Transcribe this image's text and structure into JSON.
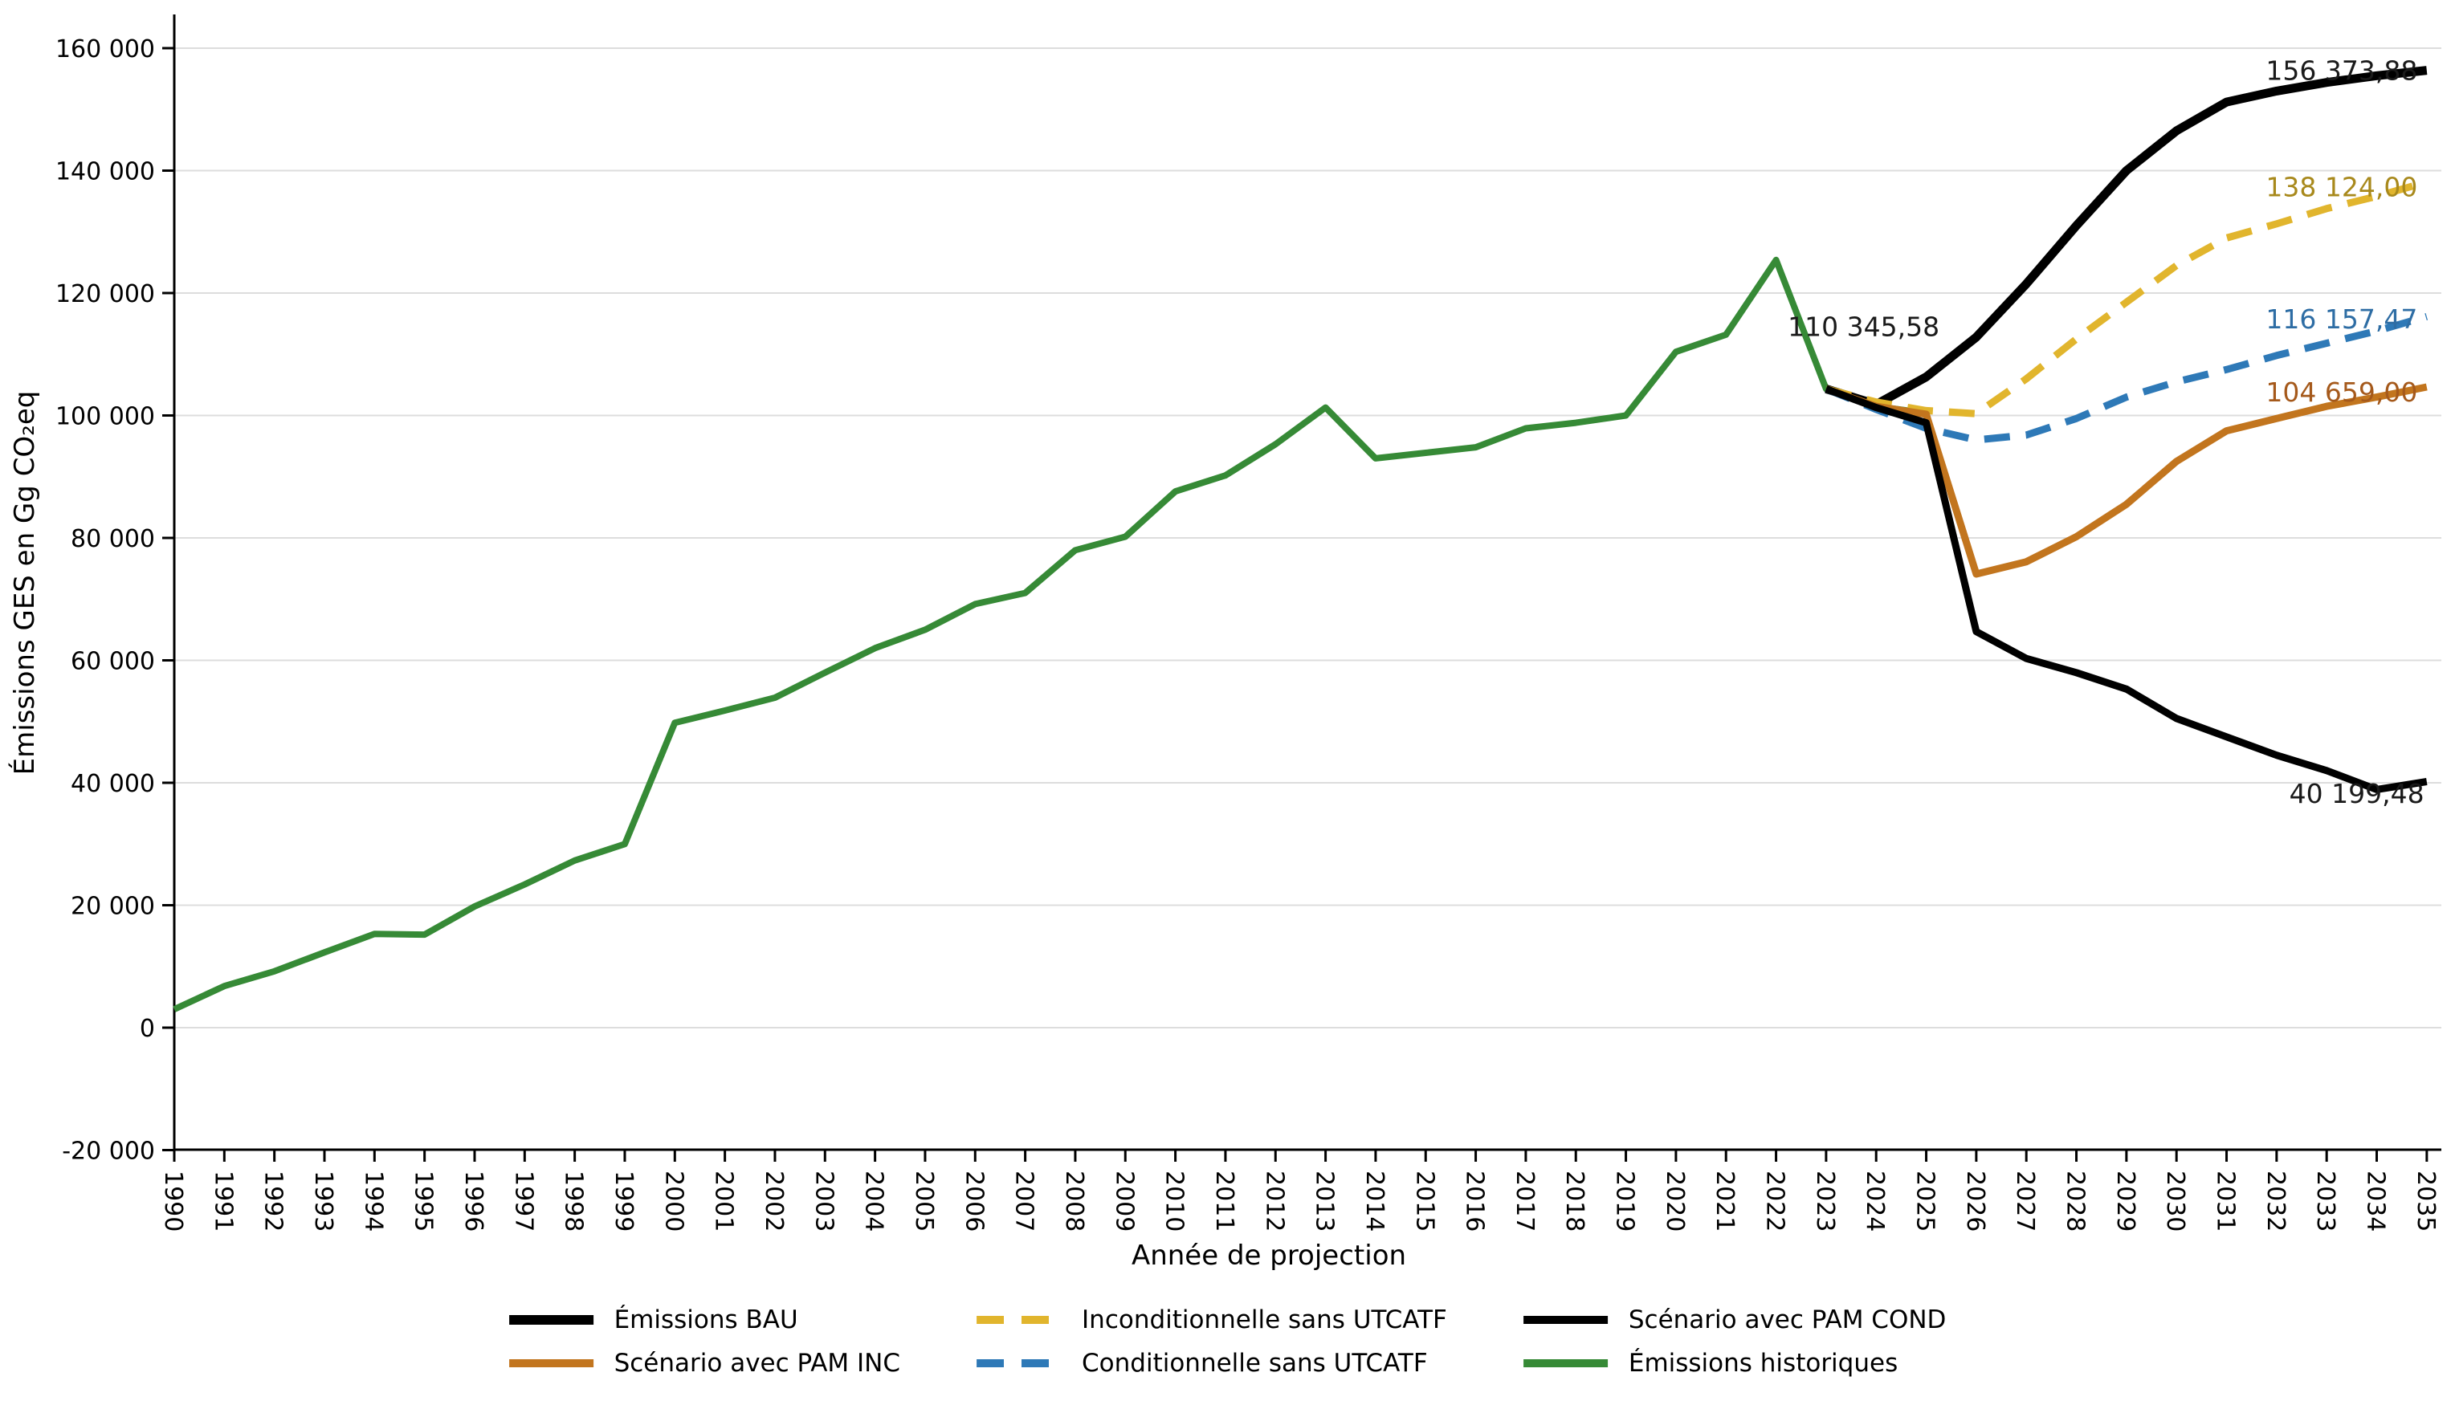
{
  "chart_data": {
    "type": "line",
    "title": "",
    "xlabel": "Année de projection",
    "ylabel": "Émissions GES en Gg CO₂eq",
    "x_range": [
      1990,
      2035
    ],
    "ylim": [
      -20000,
      160000
    ],
    "y_tick_step": 20000,
    "grid": "horizontal-only",
    "legend_position": "bottom-center",
    "series": [
      {
        "id": "historical",
        "name": "Émissions historiques",
        "color": "#368A36",
        "style": "solid",
        "x_start": 1990,
        "values": [
          3000,
          6800,
          9200,
          12300,
          15300,
          15200,
          19800,
          23400,
          27300,
          30000,
          49800,
          51800,
          53900,
          58000,
          62000,
          65000,
          69200,
          71000,
          78000,
          80200,
          87600,
          90200,
          95300,
          101300,
          93000,
          93900,
          94800,
          97900,
          98800,
          100000,
          110400,
          113200,
          125400,
          104346,
          101500,
          100400
        ]
      },
      {
        "id": "bau",
        "name": "Émissions BAU",
        "color": "#000000",
        "style": "solid",
        "x_start": 2023,
        "values": [
          104346,
          101800,
          106300,
          112800,
          121500,
          131000,
          140000,
          146500,
          151200,
          153000,
          154400,
          155500,
          156373.88
        ]
      },
      {
        "id": "inc-sans-utcatf",
        "name": "Inconditionnelle sans UTCATF",
        "color": "#E1B52D",
        "style": "dashed",
        "x_start": 2023,
        "values": [
          104346,
          102200,
          100800,
          100300,
          106000,
          112500,
          118500,
          124500,
          129000,
          131300,
          133800,
          135800,
          138124.0
        ]
      },
      {
        "id": "cond-sans-utcatf",
        "name": "Conditionnelle sans UTCATF",
        "color": "#2E79B7",
        "style": "dashed",
        "x_start": 2023,
        "values": [
          104346,
          101000,
          97900,
          96000,
          96800,
          99500,
          103000,
          105500,
          107500,
          109800,
          111800,
          113800,
          116157.47
        ]
      },
      {
        "id": "pam-inc",
        "name": "Scénario avec PAM INC",
        "color": "#C2751E",
        "style": "solid",
        "x_start": 2023,
        "values": [
          104346,
          101500,
          100200,
          74100,
          76100,
          80200,
          85500,
          92500,
          97500,
          99500,
          101500,
          103000,
          104659.0
        ]
      },
      {
        "id": "pam-cond",
        "name": "Scénario avec PAM COND",
        "color": "#000000",
        "style": "solid",
        "x_start": 2023,
        "values": [
          104346,
          101300,
          98800,
          64700,
          60300,
          58000,
          55300,
          50500,
          47500,
          44500,
          42000,
          38900,
          40199.48
        ]
      }
    ],
    "annotations": [
      {
        "text": "110 345,58",
        "color": "#1a1a1a",
        "x": 2023.75,
        "y": 113000
      },
      {
        "text": "156 373,88",
        "color": "#1a1a1a",
        "x": 2033.3,
        "y": 154800
      },
      {
        "text": "138 124,00",
        "color": "#A8891C",
        "x": 2033.3,
        "y": 135800
      },
      {
        "text": "116 157,47",
        "color": "#2E6DA4",
        "x": 2033.3,
        "y": 114200
      },
      {
        "text": "104 659,00",
        "color": "#A5591B",
        "x": 2033.3,
        "y": 102300
      },
      {
        "text": "40 199,48",
        "color": "#1a1a1a",
        "x": 2033.6,
        "y": 36700
      }
    ]
  },
  "legend": {
    "items": [
      {
        "id": "bau",
        "label": "Émissions BAU",
        "color": "#000000",
        "dash": false,
        "thickness": 12
      },
      {
        "id": "pam-inc",
        "label": "Scénario avec PAM INC",
        "color": "#C2751E",
        "dash": false,
        "thickness": 10
      },
      {
        "id": "inc-sans-utcatf",
        "label": "Inconditionnelle sans UTCATF",
        "color": "#E1B52D",
        "dash": true,
        "thickness": 10
      },
      {
        "id": "cond-sans-utcatf",
        "label": "Conditionnelle sans UTCATF",
        "color": "#2E79B7",
        "dash": true,
        "thickness": 10
      },
      {
        "id": "pam-cond",
        "label": "Scénario avec PAM COND",
        "color": "#000000",
        "dash": false,
        "thickness": 10
      },
      {
        "id": "historical",
        "label": "Émissions historiques",
        "color": "#368A36",
        "dash": false,
        "thickness": 10
      }
    ]
  }
}
